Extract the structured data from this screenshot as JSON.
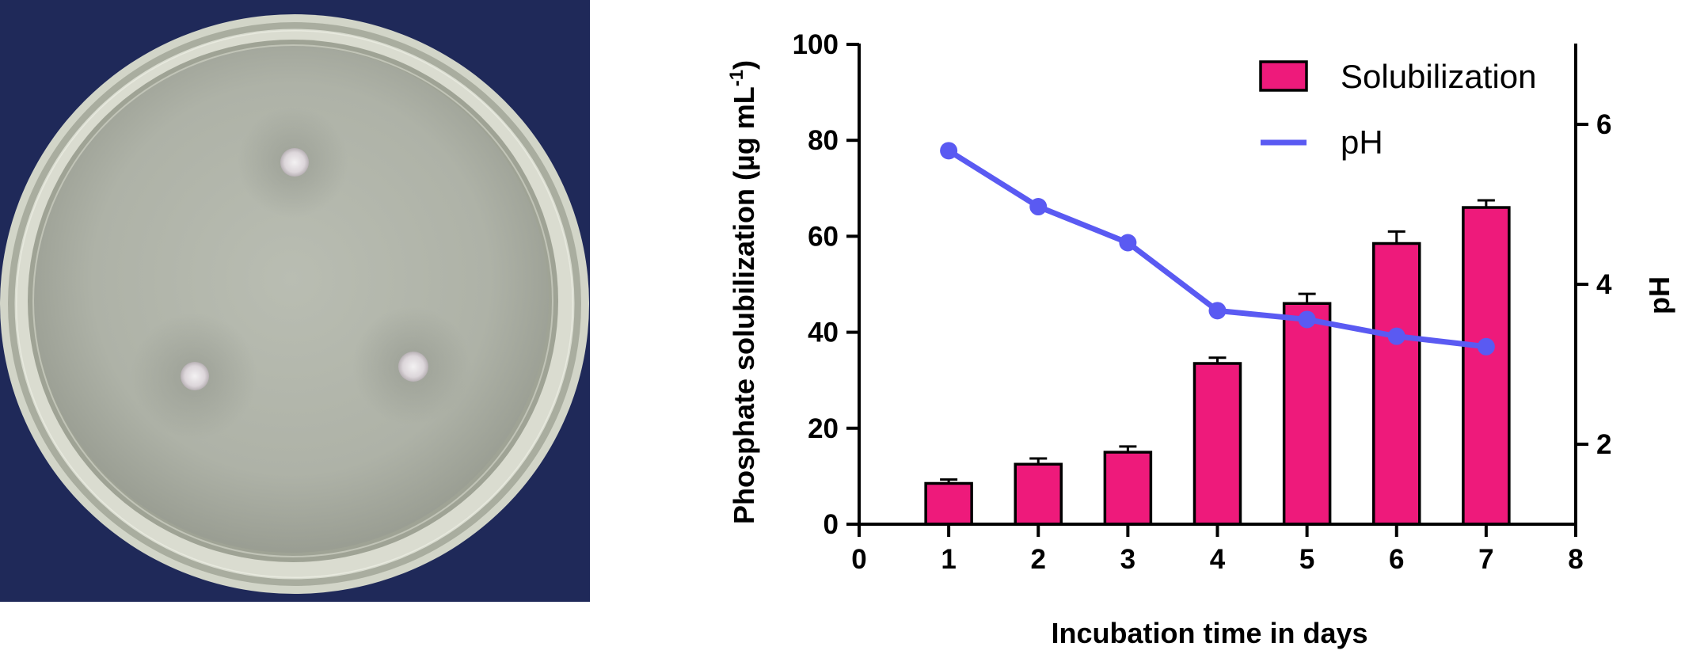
{
  "chart_data": {
    "type": "bar",
    "x": [
      1,
      2,
      3,
      4,
      5,
      6,
      7
    ],
    "x_ticks": [
      "0",
      "1",
      "2",
      "3",
      "4",
      "5",
      "6",
      "7",
      "8"
    ],
    "xlim": [
      0,
      8
    ],
    "xlabel": "Incubation time in days",
    "ylabel": "Phosphate solubilization (µg mL",
    "ylabel_superscript": "-1",
    "ylabel_close": ")",
    "y_ticks": [
      "0",
      "20",
      "40",
      "60",
      "80",
      "100"
    ],
    "ylim": [
      0,
      100
    ],
    "y2label": "pH",
    "y2_ticks": [
      "2",
      "4",
      "6"
    ],
    "y2lim": [
      1,
      7
    ],
    "grid": false,
    "legend_position": "top-right",
    "series": [
      {
        "name": "Solubilization",
        "type": "bar",
        "axis": "left",
        "color": "#ee1a7b",
        "values": [
          8.5,
          12.5,
          15,
          33.5,
          46,
          58.5,
          66
        ],
        "errors": [
          0.8,
          1.2,
          1.2,
          1.2,
          2.0,
          2.5,
          1.5
        ]
      },
      {
        "name": "pH",
        "type": "line",
        "axis": "right",
        "color": "#5a5af2",
        "values": [
          5.67,
          4.97,
          4.52,
          3.67,
          3.56,
          3.35,
          3.22
        ]
      }
    ]
  }
}
